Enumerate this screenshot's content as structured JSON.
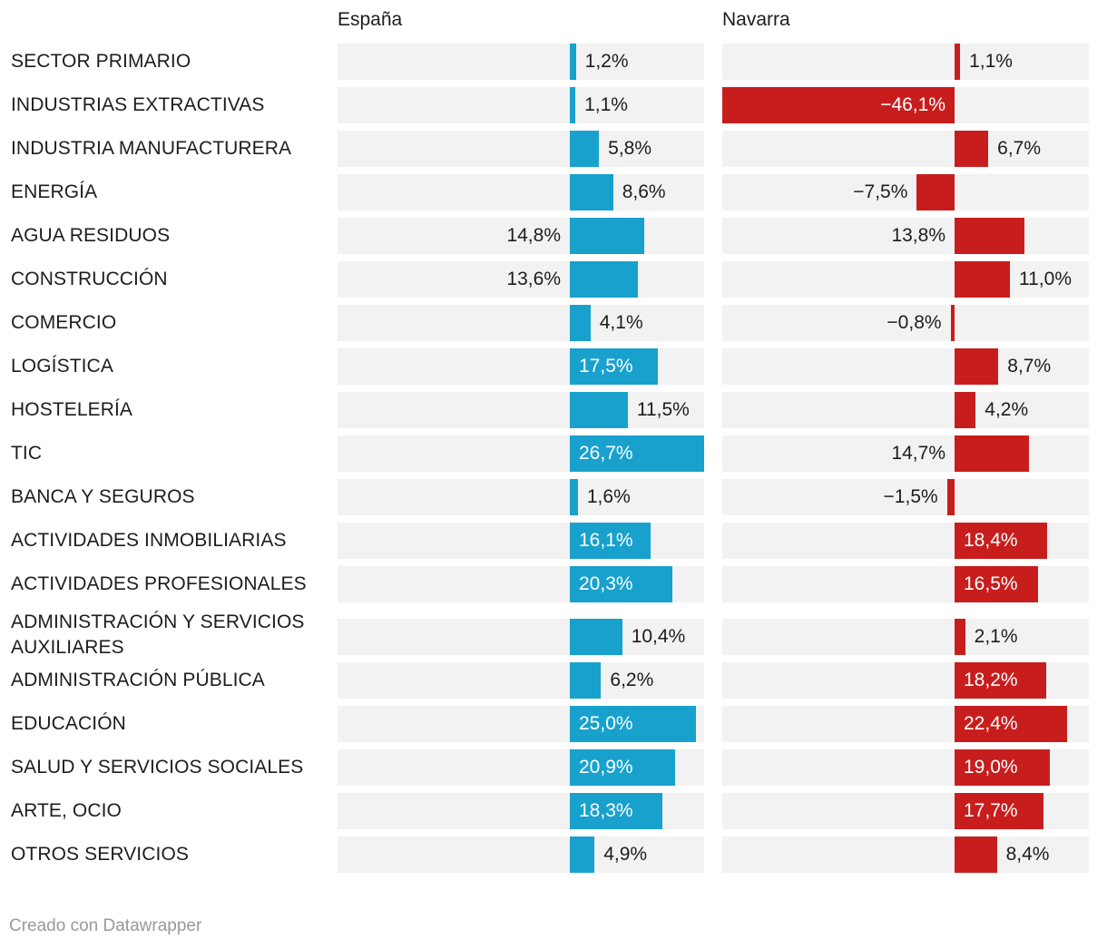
{
  "chart_data": {
    "type": "bar",
    "orientation": "horizontal",
    "categories": [
      "SECTOR PRIMARIO",
      "INDUSTRIAS EXTRACTIVAS",
      "INDUSTRIA MANUFACTURERA",
      "ENERGÍA",
      "AGUA RESIDUOS",
      "CONSTRUCCIÓN",
      "COMERCIO",
      "LOGÍSTICA",
      "HOSTELERÍA",
      "TIC",
      "BANCA Y SEGUROS",
      "ACTIVIDADES INMOBILIARIAS",
      "ACTIVIDADES PROFESIONALES",
      "ADMINISTRACIÓN Y SERVICIOS AUXILIARES",
      "ADMINISTRACIÓN PÚBLICA",
      "EDUCACIÓN",
      "SALUD Y SERVICIOS SOCIALES",
      "ARTE, OCIO",
      "OTROS SERVICIOS"
    ],
    "series": [
      {
        "name": "España",
        "color": "#18a1cd",
        "values": [
          1.2,
          1.1,
          5.8,
          8.6,
          14.8,
          13.6,
          4.1,
          17.5,
          11.5,
          26.7,
          1.6,
          16.1,
          20.3,
          10.4,
          6.2,
          25.0,
          20.9,
          18.3,
          4.9
        ],
        "labels": [
          "1,2%",
          "1,1%",
          "5,8%",
          "8,6%",
          "14,8%",
          "13,6%",
          "4,1%",
          "17,5%",
          "11,5%",
          "26,7%",
          "1,6%",
          "16,1%",
          "20,3%",
          "10,4%",
          "6,2%",
          "25,0%",
          "20,9%",
          "18,3%",
          "4,9%"
        ],
        "label_pos": [
          "out",
          "out",
          "out",
          "out",
          "left",
          "left",
          "out",
          "in",
          "out",
          "in",
          "out",
          "in",
          "in",
          "out",
          "out",
          "in",
          "in",
          "in",
          "out"
        ]
      },
      {
        "name": "Navarra",
        "color": "#c71e1d",
        "values": [
          1.1,
          -46.1,
          6.7,
          -7.5,
          13.8,
          11.0,
          -0.8,
          8.7,
          4.2,
          14.7,
          -1.5,
          18.4,
          16.5,
          2.1,
          18.2,
          22.4,
          19.0,
          17.7,
          8.4
        ],
        "labels": [
          "1,1%",
          "−46,1%",
          "6,7%",
          "−7,5%",
          "13,8%",
          "11,0%",
          "−0,8%",
          "8,7%",
          "4,2%",
          "14,7%",
          "−1,5%",
          "18,4%",
          "16,5%",
          "2,1%",
          "18,2%",
          "22,4%",
          "19,0%",
          "17,7%",
          "8,4%"
        ],
        "label_pos": [
          "out",
          "in",
          "out",
          "out",
          "left",
          "out",
          "out",
          "out",
          "out",
          "left",
          "out",
          "in",
          "in",
          "out",
          "in",
          "in",
          "in",
          "in",
          "out"
        ]
      }
    ],
    "xlim": [
      -46.1,
      26.7
    ],
    "title": "",
    "xlabel": "",
    "ylabel": ""
  },
  "credit": "Creado con Datawrapper"
}
